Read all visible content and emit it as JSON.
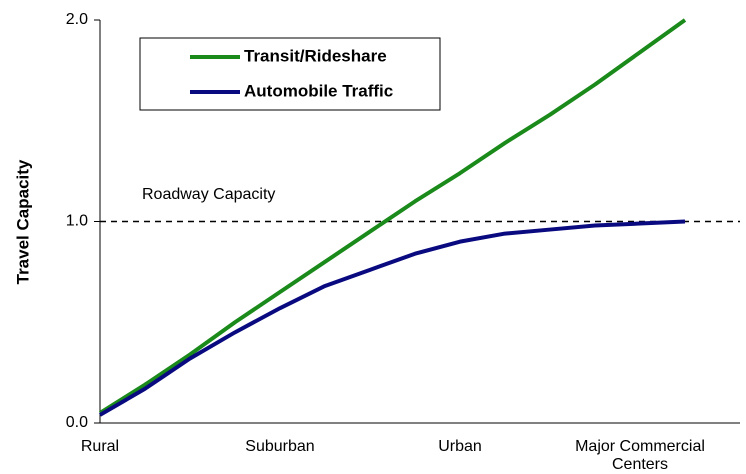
{
  "chart_data": {
    "type": "line",
    "ylabel": "Travel Capacity",
    "annotation": "Roadway Capacity",
    "reference_line": 1.0,
    "categories": [
      "Rural",
      null,
      null,
      null,
      "Suburban",
      null,
      null,
      null,
      "Urban",
      null,
      null,
      null,
      "Major Commercial Centers",
      null
    ],
    "series": [
      {
        "name": "Transit/Rideshare",
        "color": "#1a8a1a",
        "values": [
          0.05,
          0.19,
          0.34,
          0.5,
          0.65,
          0.8,
          0.95,
          1.1,
          1.24,
          1.39,
          1.53,
          1.68,
          1.84,
          2.0
        ]
      },
      {
        "name": "Automobile Traffic",
        "color": "#0a0a80",
        "values": [
          0.04,
          0.17,
          0.32,
          0.45,
          0.57,
          0.68,
          0.76,
          0.84,
          0.9,
          0.94,
          0.96,
          0.98,
          0.99,
          1.0
        ]
      }
    ],
    "ylim": [
      0.0,
      2.0
    ],
    "yticks": [
      {
        "value": 0,
        "label": "0.0"
      },
      {
        "value": 1,
        "label": "1.0"
      },
      {
        "value": 2,
        "label": "2.0"
      }
    ]
  }
}
